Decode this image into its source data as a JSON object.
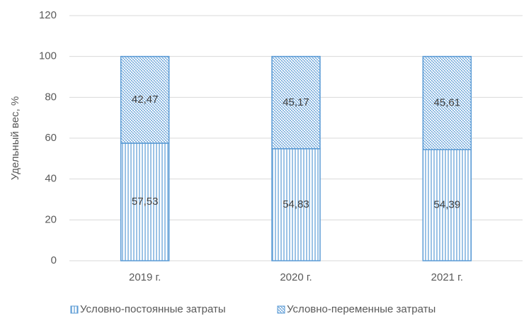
{
  "chart_data": {
    "type": "stacked_bar",
    "y_label": "Удельный вес, %",
    "categories": [
      "2019 г.",
      "2020 г.",
      "2021 г."
    ],
    "series": [
      {
        "name": "Условно-постоянные затраты",
        "color": "#5b9bd5",
        "pattern": "vertical",
        "values": [
          57.53,
          54.83,
          54.39
        ],
        "value_labels": [
          "57,53",
          "54,83",
          "54,39"
        ]
      },
      {
        "name": "Условно-переменные затраты",
        "color": "#5b9bd5",
        "pattern": "diagonal-cross",
        "values": [
          42.47,
          45.17,
          45.61
        ],
        "value_labels": [
          "42,47",
          "45,17",
          "45,61"
        ]
      }
    ],
    "ylim": [
      0,
      120
    ],
    "yticks": [
      0,
      20,
      40,
      60,
      80,
      100,
      120
    ],
    "grid": true,
    "legend": "bottom"
  }
}
